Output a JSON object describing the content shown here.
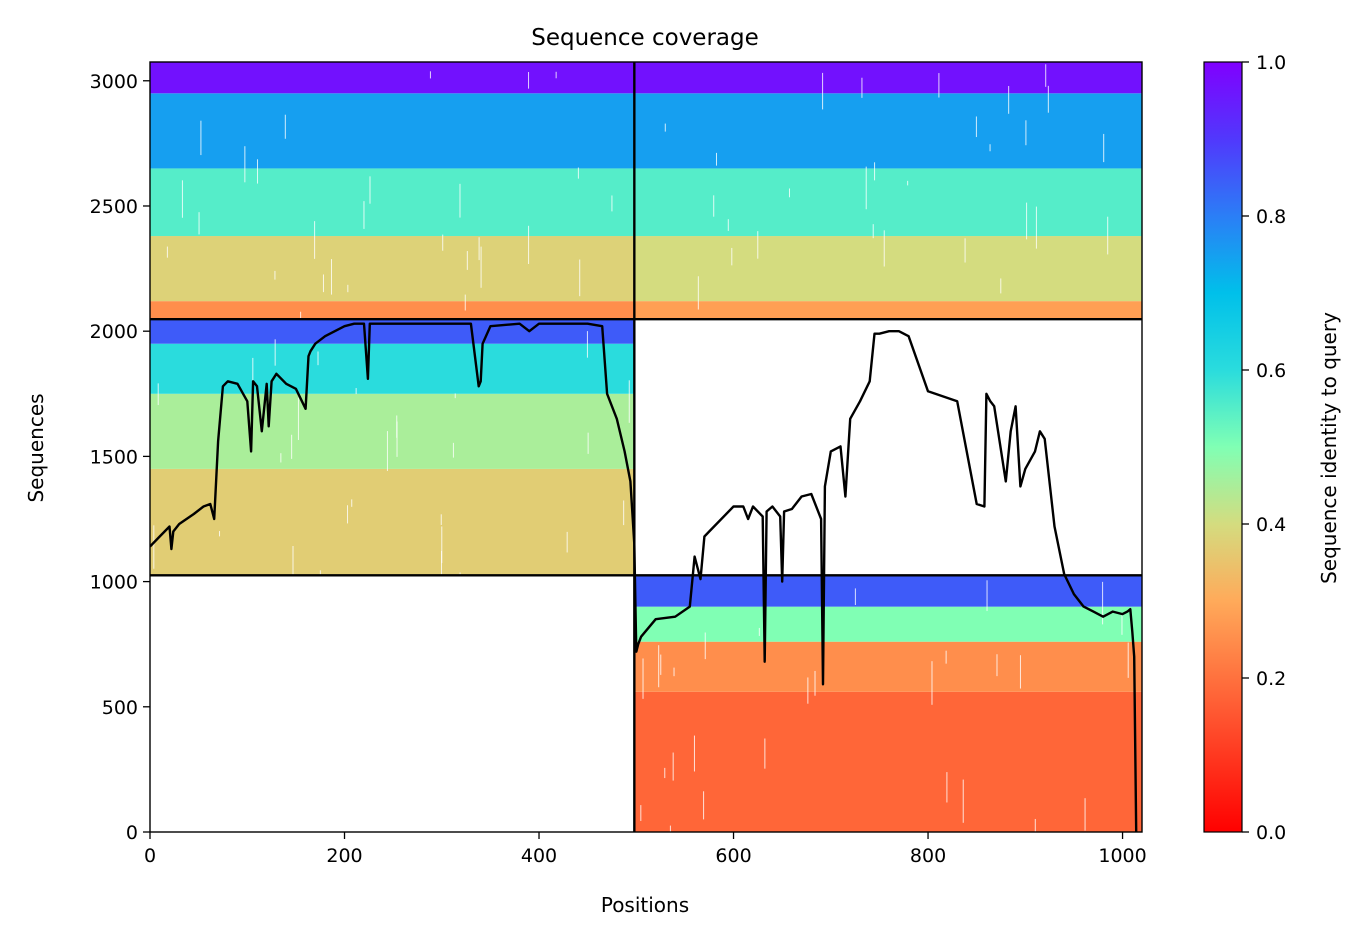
{
  "chart_data": {
    "type": "heatmap",
    "title": "Sequence coverage",
    "xlabel": "Positions",
    "ylabel": "Sequences",
    "xlim": [
      0,
      1020
    ],
    "ylim": [
      0,
      3075
    ],
    "x_ticks": [
      0,
      200,
      400,
      600,
      800,
      1000
    ],
    "y_ticks": [
      0,
      500,
      1000,
      1500,
      2000,
      2500,
      3000
    ],
    "colorbar": {
      "label": "Sequence identity to query",
      "range": [
        0,
        1
      ],
      "ticks": [
        "0.0",
        "0.2",
        "0.4",
        "0.6",
        "0.8",
        "1.0"
      ],
      "colormap": "rainbow"
    },
    "grid": false,
    "divider_lines": {
      "x": [
        498
      ],
      "y": [
        1025,
        2048
      ]
    },
    "blocks": [
      {
        "name": "top-left",
        "x_range": [
          0,
          498
        ],
        "y_range": [
          2048,
          3075
        ],
        "identity_bands": [
          {
            "y": [
              2048,
              2120
            ],
            "identity": 0.25
          },
          {
            "y": [
              2120,
              2380
            ],
            "identity": 0.38
          },
          {
            "y": [
              2380,
              2650
            ],
            "identity": 0.55
          },
          {
            "y": [
              2650,
              2950
            ],
            "identity": 0.75
          },
          {
            "y": [
              2950,
              3075
            ],
            "identity": 0.97
          }
        ]
      },
      {
        "name": "top-right",
        "x_range": [
          498,
          1020
        ],
        "y_range": [
          2048,
          3075
        ],
        "identity_bands": [
          {
            "y": [
              2048,
              2120
            ],
            "identity": 0.28
          },
          {
            "y": [
              2120,
              2380
            ],
            "identity": 0.4
          },
          {
            "y": [
              2380,
              2650
            ],
            "identity": 0.55
          },
          {
            "y": [
              2650,
              2950
            ],
            "identity": 0.75
          },
          {
            "y": [
              2950,
              3075
            ],
            "identity": 0.97
          }
        ]
      },
      {
        "name": "middle-left",
        "x_range": [
          0,
          498
        ],
        "y_range": [
          1025,
          2048
        ],
        "identity_bands": [
          {
            "y": [
              1025,
              1450
            ],
            "identity": 0.37
          },
          {
            "y": [
              1450,
              1750
            ],
            "identity": 0.45
          },
          {
            "y": [
              1750,
              1950
            ],
            "identity": 0.6
          },
          {
            "y": [
              1950,
              2048
            ],
            "identity": 0.85
          }
        ]
      },
      {
        "name": "bottom-right",
        "x_range": [
          498,
          1020
        ],
        "y_range": [
          0,
          1025
        ],
        "identity_bands": [
          {
            "y": [
              0,
              560
            ],
            "identity": 0.18
          },
          {
            "y": [
              560,
              760
            ],
            "identity": 0.25
          },
          {
            "y": [
              760,
              900
            ],
            "identity": 0.5
          },
          {
            "y": [
              900,
              1025
            ],
            "identity": 0.85
          }
        ]
      }
    ],
    "coverage_line": {
      "name": "",
      "x": [
        0,
        10,
        20,
        22,
        24,
        30,
        45,
        55,
        62,
        66,
        68,
        70,
        75,
        80,
        90,
        100,
        104,
        106,
        110,
        115,
        120,
        122,
        125,
        130,
        140,
        150,
        160,
        163,
        165,
        170,
        180,
        200,
        210,
        220,
        224,
        226,
        230,
        250,
        300,
        330,
        338,
        340,
        342,
        350,
        380,
        390,
        400,
        450,
        465,
        470,
        480,
        488,
        494,
        498,
        500,
        502,
        505,
        520,
        540,
        555,
        560,
        566,
        570,
        575,
        600,
        610,
        615,
        620,
        630,
        632,
        634,
        640,
        648,
        650,
        652,
        660,
        670,
        680,
        690,
        692,
        694,
        700,
        710,
        715,
        720,
        730,
        740,
        745,
        750,
        760,
        765,
        770,
        780,
        800,
        830,
        850,
        858,
        860,
        864,
        868,
        880,
        885,
        890,
        895,
        900,
        910,
        915,
        920,
        930,
        940,
        950,
        960,
        970,
        980,
        990,
        1000,
        1005,
        1008,
        1010,
        1012,
        1014
      ],
      "y": [
        1140,
        1180,
        1220,
        1130,
        1200,
        1230,
        1270,
        1300,
        1310,
        1250,
        1400,
        1560,
        1780,
        1800,
        1790,
        1720,
        1520,
        1800,
        1780,
        1600,
        1790,
        1620,
        1800,
        1830,
        1790,
        1770,
        1690,
        1900,
        1920,
        1950,
        1980,
        2020,
        2030,
        2030,
        1810,
        2030,
        2030,
        2030,
        2030,
        2030,
        1780,
        1800,
        1950,
        2020,
        2030,
        2000,
        2030,
        2030,
        2020,
        1750,
        1650,
        1520,
        1400,
        1150,
        720,
        750,
        780,
        850,
        860,
        900,
        1100,
        1010,
        1180,
        1200,
        1300,
        1300,
        1250,
        1300,
        1260,
        680,
        1280,
        1300,
        1260,
        1000,
        1280,
        1290,
        1340,
        1350,
        1250,
        590,
        1380,
        1520,
        1540,
        1340,
        1650,
        1720,
        1800,
        1990,
        1990,
        2000,
        2000,
        2000,
        1980,
        1760,
        1720,
        1310,
        1300,
        1750,
        1720,
        1700,
        1400,
        1600,
        1700,
        1380,
        1450,
        1520,
        1600,
        1570,
        1220,
        1030,
        950,
        900,
        880,
        860,
        880,
        870,
        880,
        890,
        800,
        700,
        0
      ]
    }
  }
}
